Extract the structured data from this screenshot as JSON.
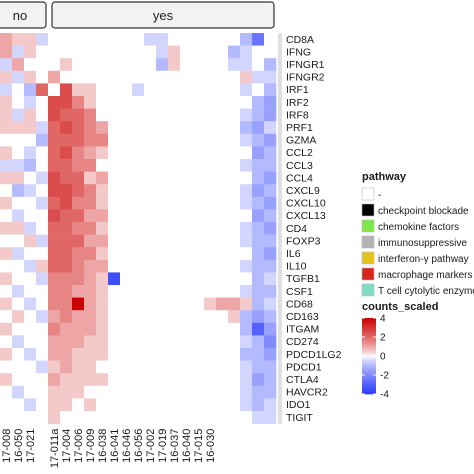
{
  "chart_data": {
    "type": "heatmap",
    "title": "",
    "column_groups": [
      {
        "label": "no",
        "columns": 4
      },
      {
        "label": "yes",
        "columns": 19
      }
    ],
    "columns": [
      "17-008",
      "16-050",
      "17-021",
      "",
      "17-011a",
      "17-004",
      "17-006",
      "17-009",
      "16-038",
      "16-041",
      "16-046",
      "16-056",
      "17-002",
      "17-019",
      "16-037",
      "16-040",
      "17-015",
      "16-030",
      "",
      "",
      "",
      "",
      ""
    ],
    "rows": [
      "CD8A",
      "IFNG",
      "IFNGR1",
      "IFNGR2",
      "IRF1",
      "IRF2",
      "IRF8",
      "PRF1",
      "GZMA",
      "CCL2",
      "CCL3",
      "CCL4",
      "CXCL9",
      "CXCL10",
      "CXCL13",
      "CD4",
      "FOXP3",
      "IL6",
      "IL10",
      "TGFB1",
      "CSF1",
      "CD68",
      "CD163",
      "ITGAM",
      "CD274",
      "PDCD1LG2",
      "PDCD1",
      "CTLA4",
      "HAVCR2",
      "IDO1",
      "TIGIT"
    ],
    "row_pathway_colors": [
      "#e0e0e0",
      "#e0e0e0",
      "#e0e0e0",
      "#e0e0e0",
      "#e0e0e0",
      "#e0e0e0",
      "#e0e0e0",
      "#e0e0e0",
      "#e0e0e0",
      "#e0e0e0",
      "#e0e0e0",
      "#e0e0e0",
      "#e0e0e0",
      "#e0e0e0",
      "#e0e0e0",
      "#e0e0e0",
      "#e0e0e0",
      "#e0e0e0",
      "#e0e0e0",
      "#e0e0e0",
      "#e0e0e0",
      "#e0e0e0",
      "#e0e0e0",
      "#e0e0e0",
      "#e0e0e0",
      "#e0e0e0",
      "#e0e0e0",
      "#e0e0e0",
      "#e0e0e0",
      "#e0e0e0",
      "#e0e0e0"
    ],
    "values": [
      [
        1.0,
        0.5,
        0.5,
        -0.5,
        0.0,
        0.0,
        0.0,
        0.0,
        0.0,
        0.0,
        0.0,
        0.0,
        -0.5,
        -0.5,
        0.0,
        0.0,
        0.0,
        0.0,
        0.0,
        0.0,
        -1.0,
        -2.5,
        0.0
      ],
      [
        1.0,
        -0.5,
        0.5,
        0.0,
        0.0,
        0.0,
        0.0,
        0.0,
        0.0,
        0.0,
        0.0,
        0.0,
        0.0,
        -0.5,
        0.5,
        0.0,
        0.0,
        0.0,
        0.0,
        -1.0,
        -0.5,
        0.0,
        0.0
      ],
      [
        -0.5,
        1.0,
        0.0,
        0.0,
        0.0,
        0.5,
        0.0,
        0.0,
        0.0,
        0.0,
        0.0,
        0.0,
        0.0,
        -1.0,
        0.5,
        0.0,
        0.0,
        0.0,
        0.0,
        -0.5,
        -0.5,
        0.0,
        -1.0
      ],
      [
        0.5,
        -0.5,
        0.5,
        0.0,
        1.0,
        0.0,
        0.0,
        0.0,
        0.0,
        0.0,
        0.0,
        0.0,
        0.0,
        0.0,
        0.0,
        0.0,
        0.0,
        0.0,
        0.0,
        0.0,
        0.5,
        -0.5,
        -0.5
      ],
      [
        -0.5,
        0.0,
        -1.0,
        2.0,
        0.0,
        2.5,
        0.5,
        0.5,
        0.0,
        0.0,
        0.0,
        -0.5,
        0.0,
        0.0,
        0.0,
        0.0,
        0.0,
        0.0,
        0.0,
        0.0,
        -0.5,
        0.0,
        -1.0
      ],
      [
        0.5,
        0.0,
        -0.5,
        0.0,
        2.5,
        2.5,
        1.5,
        0.5,
        0.0,
        0.0,
        0.0,
        0.0,
        0.0,
        0.0,
        0.0,
        0.0,
        0.0,
        0.0,
        0.0,
        0.0,
        0.0,
        -1.0,
        -1.5
      ],
      [
        0.5,
        -0.5,
        0.5,
        0.0,
        2.5,
        2.0,
        2.0,
        1.5,
        0.0,
        0.0,
        0.0,
        0.0,
        0.0,
        0.0,
        0.0,
        0.0,
        0.0,
        0.0,
        0.0,
        0.0,
        -0.5,
        -1.0,
        -1.5
      ],
      [
        0.5,
        0.5,
        0.5,
        -0.5,
        2.0,
        2.5,
        2.0,
        1.5,
        1.0,
        0.0,
        0.0,
        0.0,
        0.0,
        0.0,
        0.0,
        0.0,
        0.0,
        0.0,
        0.0,
        0.0,
        -1.0,
        -1.5,
        -0.5
      ],
      [
        0.0,
        0.0,
        0.0,
        -1.0,
        2.0,
        2.0,
        2.0,
        1.5,
        1.5,
        0.0,
        0.0,
        0.0,
        0.0,
        0.0,
        0.0,
        0.0,
        0.0,
        0.0,
        0.0,
        0.0,
        -0.5,
        -1.0,
        -1.5
      ],
      [
        0.5,
        0.0,
        -0.5,
        0.0,
        2.0,
        2.5,
        1.5,
        1.0,
        0.5,
        0.0,
        0.0,
        0.0,
        0.0,
        0.0,
        0.0,
        0.0,
        0.0,
        0.0,
        0.0,
        0.0,
        0.0,
        -1.5,
        -1.0
      ],
      [
        -0.5,
        -0.5,
        -1.0,
        0.0,
        2.0,
        2.0,
        1.5,
        1.5,
        0.0,
        0.0,
        0.0,
        0.0,
        0.0,
        0.0,
        0.0,
        0.0,
        0.0,
        0.0,
        0.0,
        0.0,
        -0.5,
        -1.0,
        -1.0
      ],
      [
        0.5,
        0.5,
        0.0,
        -0.5,
        2.5,
        2.0,
        2.0,
        0.5,
        1.0,
        0.0,
        0.0,
        0.0,
        0.0,
        0.0,
        0.0,
        0.0,
        0.0,
        0.0,
        0.0,
        0.0,
        0.0,
        -1.0,
        -1.5
      ],
      [
        0.0,
        -1.0,
        -0.5,
        0.0,
        2.5,
        2.5,
        2.0,
        1.5,
        0.5,
        0.0,
        0.0,
        0.0,
        0.0,
        0.0,
        0.0,
        0.0,
        0.0,
        0.0,
        0.0,
        0.0,
        -0.5,
        -1.5,
        -1.0
      ],
      [
        0.5,
        0.0,
        0.0,
        -0.5,
        2.0,
        2.5,
        1.5,
        1.5,
        0.5,
        0.0,
        0.0,
        0.0,
        0.0,
        0.0,
        0.0,
        0.0,
        0.0,
        0.0,
        0.0,
        0.0,
        -0.5,
        -1.0,
        -1.5
      ],
      [
        0.0,
        -0.5,
        0.0,
        0.0,
        2.5,
        2.0,
        2.0,
        1.0,
        1.0,
        0.0,
        0.0,
        0.0,
        0.0,
        0.0,
        0.0,
        0.0,
        0.0,
        0.0,
        0.0,
        0.0,
        0.0,
        -1.5,
        -1.0
      ],
      [
        0.5,
        0.5,
        -0.5,
        0.0,
        2.0,
        2.0,
        1.5,
        1.5,
        0.5,
        0.0,
        0.0,
        0.0,
        0.0,
        0.0,
        0.0,
        0.0,
        0.0,
        0.0,
        0.0,
        0.0,
        -0.5,
        -1.0,
        -1.5
      ],
      [
        0.0,
        0.0,
        0.5,
        -0.5,
        2.0,
        2.0,
        2.0,
        1.0,
        1.0,
        0.0,
        0.0,
        0.0,
        0.0,
        0.0,
        0.0,
        0.0,
        0.0,
        0.0,
        0.0,
        0.0,
        -0.5,
        -1.0,
        -1.0
      ],
      [
        0.5,
        -0.5,
        0.0,
        0.0,
        2.0,
        2.0,
        1.5,
        1.5,
        0.5,
        0.0,
        0.0,
        0.0,
        0.0,
        0.0,
        0.0,
        0.0,
        0.0,
        0.0,
        0.0,
        0.0,
        0.0,
        -1.0,
        -1.5
      ],
      [
        0.0,
        0.0,
        -0.5,
        0.5,
        2.0,
        2.0,
        1.5,
        1.0,
        1.0,
        0.0,
        0.0,
        0.0,
        0.0,
        0.0,
        0.0,
        0.0,
        0.0,
        0.0,
        0.0,
        0.0,
        -0.5,
        -1.0,
        -1.0
      ],
      [
        0.5,
        0.0,
        0.0,
        -0.5,
        1.5,
        1.5,
        1.5,
        1.0,
        0.5,
        -3.5,
        0.0,
        0.0,
        0.0,
        0.0,
        0.0,
        0.0,
        0.0,
        0.0,
        0.0,
        0.0,
        0.0,
        -1.0,
        -0.5
      ],
      [
        0.0,
        -0.5,
        0.0,
        0.0,
        1.5,
        1.5,
        1.0,
        1.0,
        0.5,
        0.0,
        0.0,
        0.0,
        0.0,
        0.0,
        0.0,
        0.0,
        0.0,
        0.0,
        0.0,
        0.0,
        -0.5,
        -1.0,
        -1.0
      ],
      [
        0.5,
        0.0,
        -0.5,
        0.0,
        1.5,
        1.5,
        4.0,
        1.0,
        0.5,
        0.0,
        0.0,
        0.0,
        0.0,
        0.0,
        0.0,
        0.0,
        0.0,
        0.5,
        1.0,
        1.0,
        0.5,
        -1.0,
        -0.5
      ],
      [
        0.0,
        0.5,
        0.0,
        -0.5,
        1.0,
        1.5,
        1.0,
        1.0,
        0.5,
        0.0,
        0.0,
        0.0,
        0.0,
        0.0,
        0.0,
        0.0,
        0.0,
        0.0,
        0.0,
        0.5,
        -1.0,
        -1.5,
        -1.0
      ],
      [
        0.5,
        0.0,
        0.0,
        0.0,
        1.5,
        1.0,
        1.0,
        1.0,
        0.5,
        0.0,
        0.0,
        0.0,
        0.0,
        0.0,
        0.0,
        0.0,
        0.0,
        0.0,
        0.0,
        0.0,
        -1.0,
        -3.0,
        -1.5
      ],
      [
        0.0,
        -0.5,
        0.0,
        0.0,
        1.0,
        1.0,
        1.0,
        0.5,
        0.5,
        0.0,
        0.0,
        0.0,
        0.0,
        0.0,
        0.0,
        0.0,
        0.0,
        0.0,
        0.0,
        0.0,
        -0.5,
        -1.0,
        -2.0
      ],
      [
        0.5,
        0.0,
        -0.5,
        0.0,
        1.0,
        1.0,
        0.5,
        0.5,
        0.5,
        0.0,
        0.0,
        0.0,
        0.0,
        0.0,
        0.0,
        0.0,
        0.0,
        0.0,
        0.0,
        0.0,
        -1.0,
        -1.0,
        -1.5
      ],
      [
        0.0,
        0.0,
        0.0,
        -0.5,
        0.5,
        1.0,
        0.5,
        0.5,
        0.0,
        0.0,
        0.0,
        0.0,
        0.0,
        0.0,
        0.0,
        0.0,
        0.0,
        0.0,
        0.0,
        0.0,
        -0.5,
        -1.0,
        -1.0
      ],
      [
        0.5,
        0.0,
        0.0,
        0.0,
        1.0,
        0.5,
        0.5,
        0.5,
        0.5,
        0.0,
        0.0,
        0.0,
        0.0,
        0.0,
        0.0,
        0.0,
        0.0,
        0.0,
        0.0,
        0.0,
        -0.5,
        -1.5,
        -1.0
      ],
      [
        0.0,
        -0.5,
        0.0,
        0.0,
        0.5,
        0.5,
        0.5,
        0.0,
        0.0,
        0.0,
        0.0,
        0.0,
        0.0,
        0.0,
        0.0,
        0.0,
        0.0,
        0.0,
        0.0,
        0.0,
        -0.5,
        -1.0,
        -1.0
      ],
      [
        0.0,
        0.0,
        -0.5,
        0.0,
        0.5,
        0.5,
        0.0,
        0.5,
        0.0,
        0.0,
        0.0,
        0.0,
        0.0,
        0.0,
        0.0,
        0.0,
        0.0,
        0.0,
        0.0,
        0.0,
        -0.5,
        -1.0,
        -0.5
      ],
      [
        0.0,
        0.0,
        0.0,
        0.0,
        0.5,
        0.0,
        0.0,
        0.0,
        0.0,
        0.0,
        0.0,
        0.0,
        0.0,
        0.0,
        0.0,
        0.0,
        0.0,
        0.0,
        0.0,
        0.0,
        0.0,
        -0.5,
        -0.5
      ]
    ],
    "color_scale": {
      "label": "counts_scaled",
      "min": -4,
      "max": 4,
      "ticks": [
        4,
        2,
        0,
        -2,
        -4
      ],
      "colors": {
        "low": "#2b3bff",
        "mid": "#ffffff",
        "high": "#cc0000"
      }
    },
    "pathway_legend": {
      "title": "pathway",
      "entries": [
        {
          "label": "-",
          "color": "#ffffff"
        },
        {
          "label": "checkpoint blockade",
          "color": "#000000"
        },
        {
          "label": "chemokine factors",
          "color": "#7ee84a"
        },
        {
          "label": "immunosuppressive",
          "color": "#b3b3b3"
        },
        {
          "label": "interferon-γ pathway",
          "color": "#e3c21c"
        },
        {
          "label": "macrophage markers",
          "color": "#d6261b"
        },
        {
          "label": "T cell cytolytic enzymes",
          "color": "#7fdcc2"
        }
      ]
    }
  }
}
